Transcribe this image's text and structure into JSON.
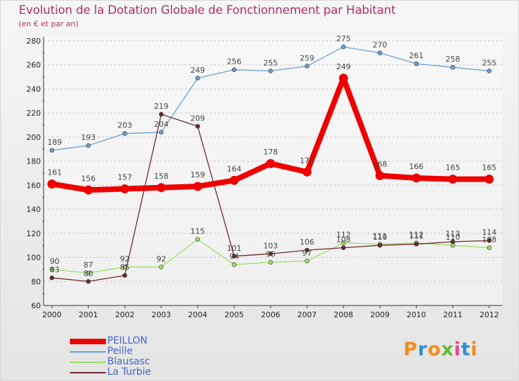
{
  "chart_data": {
    "type": "line",
    "title": "Evolution de la Dotation Globale de Fonctionnement par Habitant",
    "subtitle": "(en € et par an)",
    "xlabel": "",
    "ylabel": "",
    "categories": [
      "2000",
      "2001",
      "2002",
      "2003",
      "2004",
      "2005",
      "2006",
      "2007",
      "2008",
      "2009",
      "2010",
      "2011",
      "2012"
    ],
    "ylim": [
      60,
      280
    ],
    "yticks": [
      60,
      80,
      100,
      120,
      140,
      160,
      180,
      200,
      220,
      240,
      260,
      280
    ],
    "grid": "horizontal dashed",
    "legend_position": "bottom-left",
    "series": [
      {
        "name": "PEILLON",
        "color": "#ee0000",
        "emphasis": true,
        "values": [
          161,
          156,
          157,
          158,
          159,
          164,
          178,
          171,
          249,
          168,
          166,
          165,
          165
        ]
      },
      {
        "name": "Peille",
        "color": "#6a9fd0",
        "emphasis": false,
        "values": [
          189,
          193,
          203,
          204,
          249,
          256,
          255,
          259,
          275,
          270,
          261,
          258,
          255
        ]
      },
      {
        "name": "Blausasc",
        "color": "#99dd66",
        "emphasis": false,
        "values": [
          90,
          87,
          92,
          92,
          115,
          94,
          96,
          97,
          112,
          111,
          112,
          110,
          108
        ]
      },
      {
        "name": "La Turbie",
        "color": "#6b2a2a",
        "emphasis": false,
        "values": [
          83,
          80,
          85,
          219,
          209,
          101,
          103,
          106,
          108,
          110,
          111,
          113,
          114
        ]
      }
    ]
  },
  "branding": {
    "logo_text": "Proxiti",
    "logo_colors": [
      "#f08c1c",
      "#2f8fd8",
      "#f08c1c",
      "#66b82e",
      "#e64a8a",
      "#2f8fd8",
      "#f08c1c"
    ]
  }
}
